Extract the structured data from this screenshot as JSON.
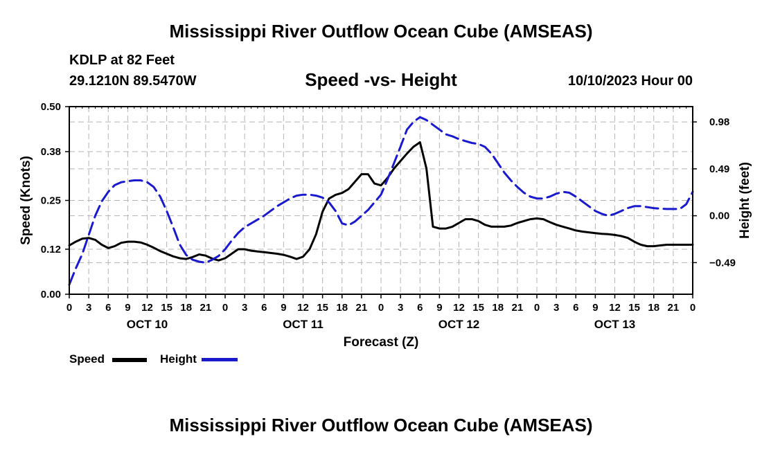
{
  "header": {
    "title": "Mississippi River Outflow Ocean Cube (AMSEAS)",
    "station": "KDLP at 82 Feet",
    "coords": "29.1210N  89.5470W",
    "subtitle": "Speed -vs- Height",
    "datetime": "10/10/2023 Hour 00"
  },
  "footer": {
    "title": "Mississippi River Outflow Ocean Cube (AMSEAS)"
  },
  "legend": {
    "speed_label": "Speed",
    "height_label": "Height"
  },
  "colors": {
    "speed": "#000000",
    "height": "#1a1acc",
    "grid": "#b4b4b4"
  },
  "chart_data": {
    "type": "line",
    "title": "Speed -vs- Height",
    "xlabel": "Forecast (Z)",
    "ylabel": "Speed (Knots)",
    "y2label": "Height (feet)",
    "xlim": [
      0,
      96
    ],
    "ylim": [
      0,
      0.5
    ],
    "y2lim": [
      -0.82,
      1.14
    ],
    "x_ticks": [
      0,
      3,
      6,
      9,
      12,
      15,
      18,
      21,
      24,
      27,
      30,
      33,
      36,
      39,
      42,
      45,
      48,
      51,
      54,
      57,
      60,
      63,
      66,
      69,
      72,
      75,
      78,
      81,
      84,
      87,
      90,
      93,
      96
    ],
    "x_tick_labels": [
      "0",
      "3",
      "6",
      "9",
      "12",
      "15",
      "18",
      "21",
      "0",
      "3",
      "6",
      "9",
      "12",
      "15",
      "18",
      "21",
      "0",
      "3",
      "6",
      "9",
      "12",
      "15",
      "18",
      "21",
      "0",
      "3",
      "6",
      "9",
      "12",
      "15",
      "18",
      "21",
      "0"
    ],
    "day_labels": [
      {
        "x": 12,
        "label": "OCT 10"
      },
      {
        "x": 36,
        "label": "OCT 11"
      },
      {
        "x": 60,
        "label": "OCT 12"
      },
      {
        "x": 84,
        "label": "OCT 13"
      }
    ],
    "y_ticks": [
      0.0,
      0.12,
      0.25,
      0.38,
      0.5
    ],
    "y_tick_labels": [
      "0.00",
      "0.12",
      "0.25",
      "0.38",
      "0.50"
    ],
    "y2_ticks": [
      -0.49,
      0.0,
      0.49,
      0.98
    ],
    "y2_tick_labels": [
      "−0.49",
      "0.00",
      "0.49",
      "0.98"
    ],
    "series": [
      {
        "name": "Speed",
        "axis": "left",
        "x": [
          0,
          1,
          2,
          3,
          4,
          5,
          6,
          7,
          8,
          9,
          10,
          11,
          12,
          13,
          14,
          15,
          16,
          17,
          18,
          19,
          20,
          21,
          22,
          23,
          24,
          25,
          26,
          27,
          28,
          29,
          30,
          31,
          32,
          33,
          34,
          35,
          36,
          37,
          38,
          39,
          40,
          41,
          42,
          43,
          44,
          45,
          46,
          47,
          48,
          49,
          50,
          51,
          52,
          53,
          54,
          55,
          56,
          57,
          58,
          59,
          60,
          61,
          62,
          63,
          64,
          65,
          66,
          67,
          68,
          69,
          70,
          71,
          72,
          73,
          74,
          75,
          76,
          77,
          78,
          79,
          80,
          81,
          82,
          83,
          84,
          85,
          86,
          87,
          88,
          89,
          90,
          91,
          92,
          93,
          94,
          95,
          96
        ],
        "values": [
          0.13,
          0.14,
          0.148,
          0.15,
          0.145,
          0.132,
          0.123,
          0.128,
          0.137,
          0.14,
          0.14,
          0.138,
          0.132,
          0.124,
          0.115,
          0.108,
          0.101,
          0.096,
          0.094,
          0.099,
          0.106,
          0.103,
          0.095,
          0.09,
          0.096,
          0.108,
          0.12,
          0.12,
          0.116,
          0.114,
          0.112,
          0.11,
          0.108,
          0.105,
          0.1,
          0.094,
          0.1,
          0.12,
          0.16,
          0.22,
          0.255,
          0.265,
          0.27,
          0.28,
          0.3,
          0.32,
          0.32,
          0.295,
          0.29,
          0.31,
          0.335,
          0.355,
          0.375,
          0.393,
          0.405,
          0.335,
          0.18,
          0.175,
          0.175,
          0.18,
          0.19,
          0.2,
          0.2,
          0.195,
          0.185,
          0.18,
          0.18,
          0.18,
          0.183,
          0.19,
          0.195,
          0.2,
          0.202,
          0.2,
          0.192,
          0.185,
          0.18,
          0.175,
          0.17,
          0.167,
          0.165,
          0.163,
          0.161,
          0.16,
          0.158,
          0.155,
          0.15,
          0.14,
          0.132,
          0.128,
          0.128,
          0.13,
          0.132,
          0.132,
          0.132,
          0.132,
          0.132
        ]
      },
      {
        "name": "Height",
        "axis": "right",
        "x": [
          0,
          1,
          2,
          3,
          4,
          5,
          6,
          7,
          8,
          9,
          10,
          11,
          12,
          13,
          14,
          15,
          16,
          17,
          18,
          19,
          20,
          21,
          22,
          23,
          24,
          25,
          26,
          27,
          28,
          29,
          30,
          31,
          32,
          33,
          34,
          35,
          36,
          37,
          38,
          39,
          40,
          41,
          42,
          43,
          44,
          45,
          46,
          47,
          48,
          49,
          50,
          51,
          52,
          53,
          54,
          55,
          56,
          57,
          58,
          59,
          60,
          61,
          62,
          63,
          64,
          65,
          66,
          67,
          68,
          69,
          70,
          71,
          72,
          73,
          74,
          75,
          76,
          77,
          78,
          79,
          80,
          81,
          82,
          83,
          84,
          85,
          86,
          87,
          88,
          89,
          90,
          91,
          92,
          93,
          94,
          95,
          96
        ],
        "values": [
          -0.72,
          -0.55,
          -0.4,
          -0.2,
          0.0,
          0.15,
          0.25,
          0.32,
          0.35,
          0.36,
          0.37,
          0.37,
          0.35,
          0.3,
          0.2,
          0.05,
          -0.12,
          -0.3,
          -0.41,
          -0.46,
          -0.48,
          -0.49,
          -0.46,
          -0.42,
          -0.35,
          -0.26,
          -0.18,
          -0.12,
          -0.08,
          -0.04,
          0.0,
          0.05,
          0.1,
          0.14,
          0.18,
          0.21,
          0.22,
          0.22,
          0.21,
          0.19,
          0.14,
          0.05,
          -0.08,
          -0.1,
          -0.06,
          0.0,
          0.06,
          0.14,
          0.22,
          0.38,
          0.55,
          0.72,
          0.9,
          0.98,
          1.03,
          1.0,
          0.95,
          0.9,
          0.85,
          0.83,
          0.8,
          0.78,
          0.76,
          0.75,
          0.72,
          0.65,
          0.55,
          0.45,
          0.37,
          0.3,
          0.24,
          0.2,
          0.18,
          0.18,
          0.2,
          0.23,
          0.25,
          0.24,
          0.2,
          0.15,
          0.1,
          0.05,
          0.02,
          0.0,
          0.02,
          0.05,
          0.08,
          0.1,
          0.1,
          0.09,
          0.08,
          0.075,
          0.07,
          0.07,
          0.07,
          0.12,
          0.25
        ]
      }
    ],
    "legend_position": "bottom-left",
    "grid": true
  }
}
